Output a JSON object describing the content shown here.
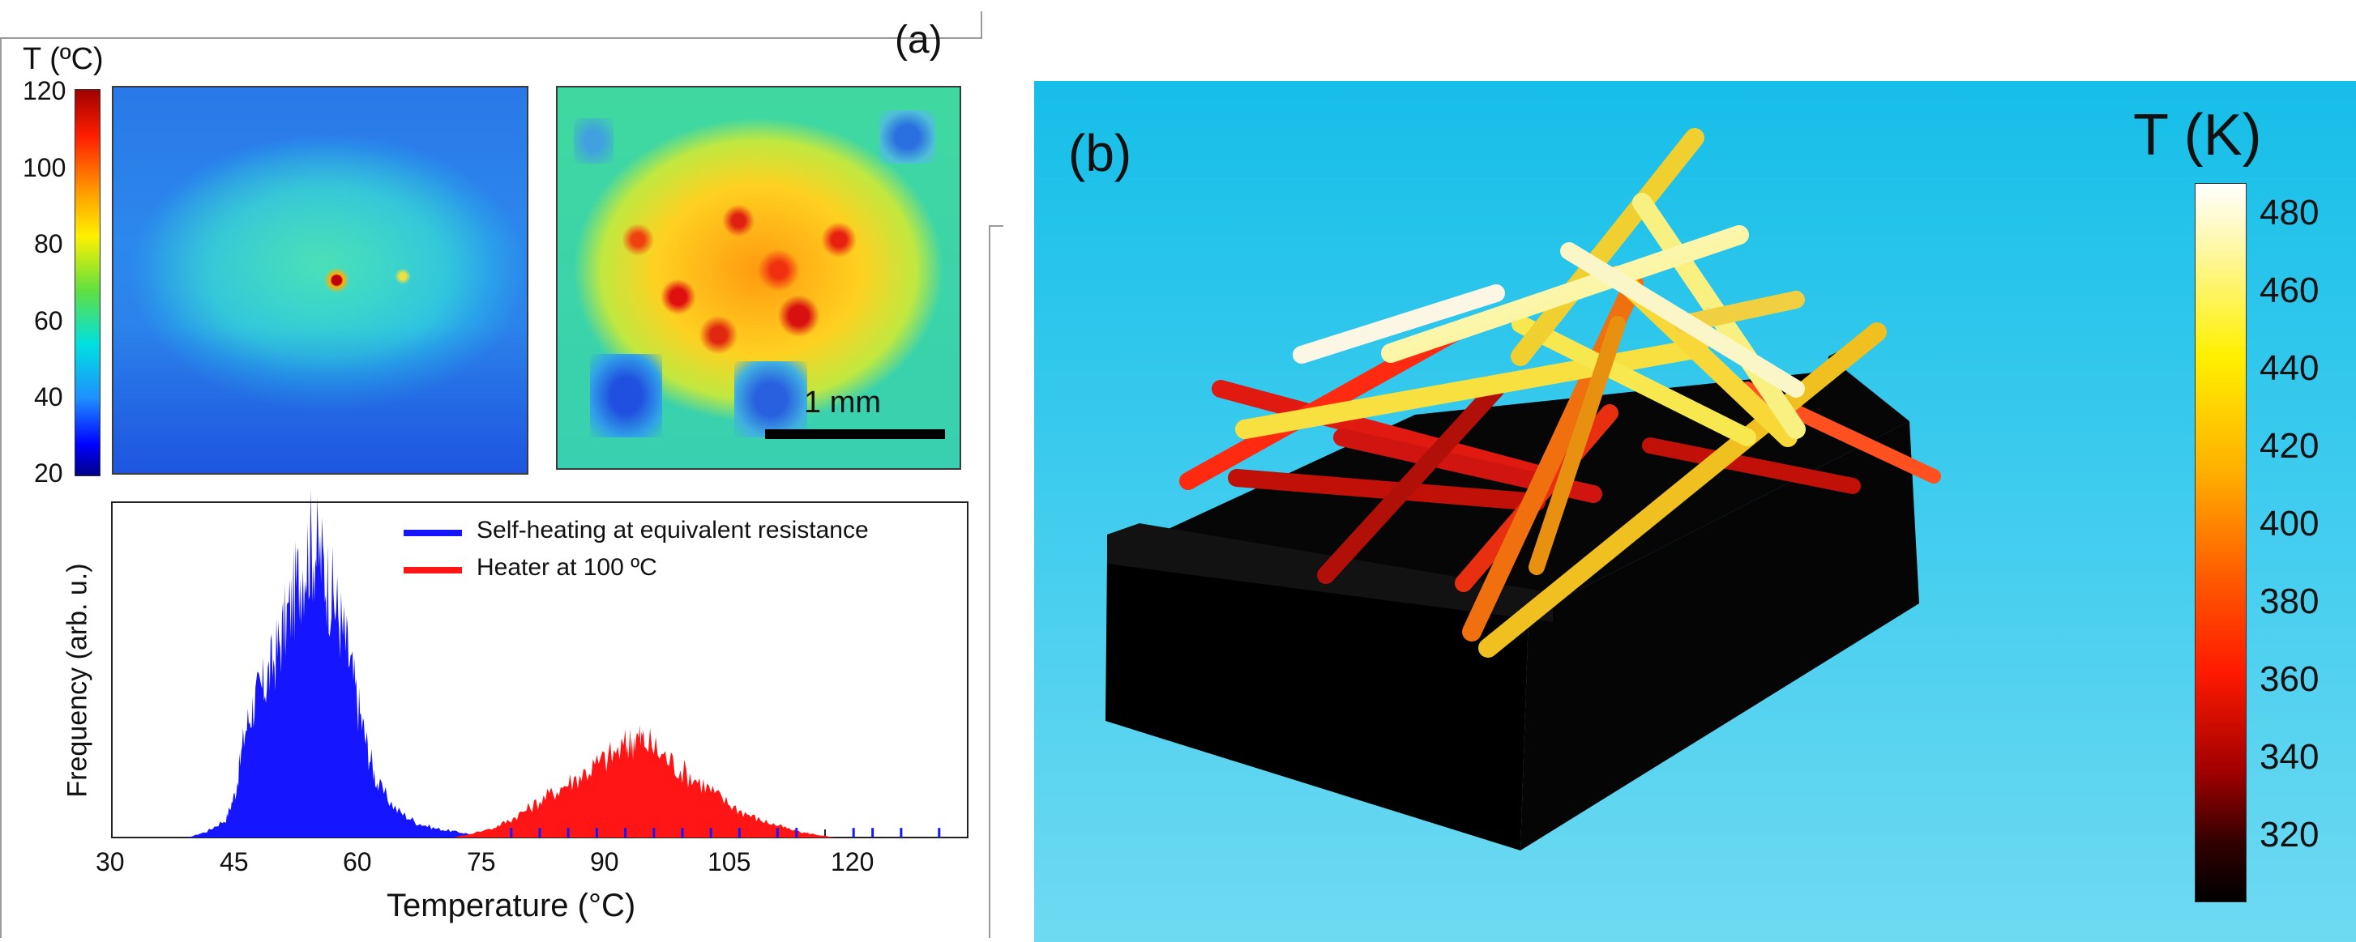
{
  "panel_a": {
    "label": "(a)",
    "colorbar": {
      "title": "T (ºC)",
      "ticks": [
        "120",
        "100",
        "80",
        "60",
        "40",
        "20"
      ]
    },
    "scale_bar_label": "1 mm",
    "histogram": {
      "ylabel": "Frequency (arb. u.)",
      "xlabel": "Temperature (°C)",
      "xticks": [
        "30",
        "45",
        "60",
        "75",
        "90",
        "105",
        "120"
      ],
      "legend": [
        {
          "label": "Self-heating at equivalent resistance",
          "color": "#1515ff"
        },
        {
          "label": "Heater at 100 ºC",
          "color": "#ff1515"
        }
      ]
    }
  },
  "panel_b": {
    "label": "(b)",
    "colorbar": {
      "title": "T (K)",
      "ticks": [
        "480",
        "460",
        "440",
        "420",
        "400",
        "380",
        "360",
        "340",
        "320"
      ]
    }
  },
  "chart_data": {
    "type": "area",
    "xlabel": "Temperature (°C)",
    "ylabel": "Frequency (arb. u.)",
    "xlim": [
      30,
      120
    ],
    "ylim": [
      0,
      1
    ],
    "grid": false,
    "legend_placement": "top-right",
    "series": [
      {
        "name": "Self-heating at equivalent resistance",
        "color": "#1515ff",
        "x": [
          38,
          40,
          42,
          43,
          44,
          45,
          46,
          47,
          48,
          49,
          50,
          51,
          52,
          53,
          54,
          55,
          56,
          57,
          58,
          60,
          62,
          64,
          66,
          68,
          70
        ],
        "y": [
          0.0,
          0.02,
          0.06,
          0.15,
          0.35,
          0.45,
          0.5,
          0.58,
          0.68,
          0.78,
          0.9,
          0.97,
          0.92,
          0.82,
          0.72,
          0.58,
          0.42,
          0.28,
          0.17,
          0.09,
          0.05,
          0.03,
          0.02,
          0.01,
          0.0
        ]
      },
      {
        "name": "Heater at 100 ºC",
        "color": "#ff1515",
        "x": [
          66,
          70,
          72,
          74,
          76,
          78,
          80,
          82,
          84,
          85,
          86,
          88,
          90,
          92,
          94,
          96,
          98,
          100,
          102,
          104,
          106
        ],
        "y": [
          0.0,
          0.03,
          0.06,
          0.1,
          0.14,
          0.18,
          0.22,
          0.26,
          0.3,
          0.33,
          0.32,
          0.27,
          0.22,
          0.18,
          0.13,
          0.09,
          0.06,
          0.04,
          0.02,
          0.01,
          0.0
        ]
      }
    ]
  }
}
